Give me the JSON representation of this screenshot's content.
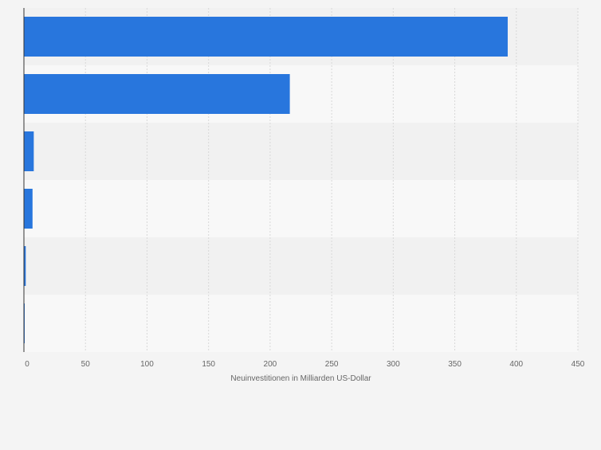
{
  "chart_data": {
    "type": "bar",
    "orientation": "horizontal",
    "categories": [
      "",
      "",
      "",
      "",
      "",
      ""
    ],
    "values": [
      393,
      216,
      8,
      7,
      1.5,
      0.5
    ],
    "xlabel": "Neuinvestitionen in Milliarden US-Dollar",
    "ylabel": "",
    "xlim": [
      0,
      450
    ],
    "ticks": [
      0,
      50,
      100,
      150,
      200,
      250,
      300,
      350,
      400,
      450
    ],
    "tick_labels": [
      "0",
      "50",
      "100",
      "150",
      "200",
      "250",
      "300",
      "350",
      "400",
      "450"
    ],
    "grid": true,
    "legend": "none"
  },
  "colors": {
    "bar": "#2876dd",
    "band_dark": "#f1f1f1",
    "band_light": "#f8f8f8",
    "grid": "#d8d8d8",
    "axis": "#333333",
    "text": "#666666",
    "background": "#f4f4f4"
  }
}
